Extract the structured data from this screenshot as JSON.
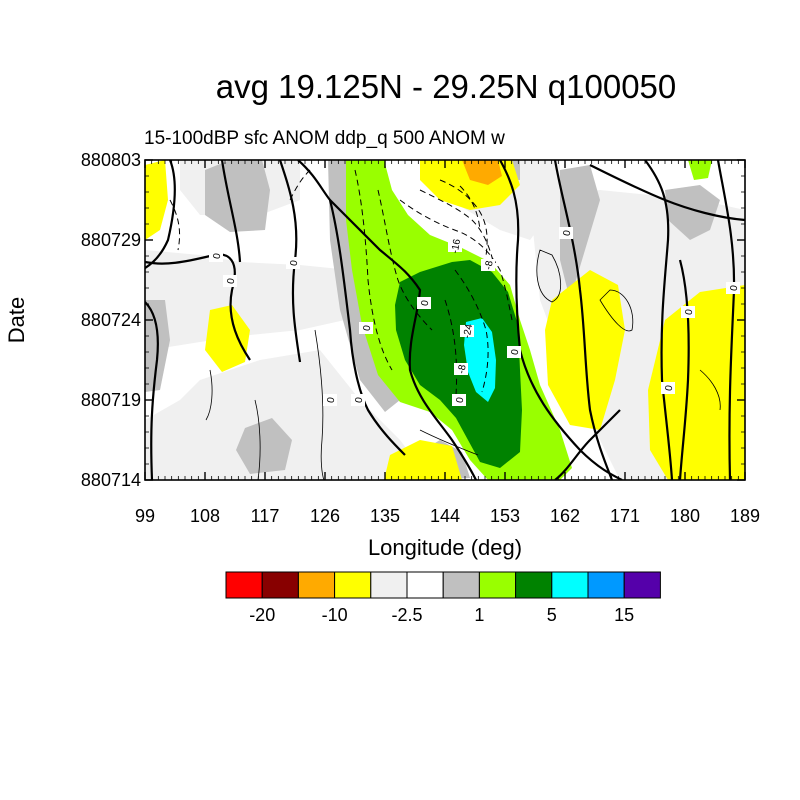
{
  "chart_data": {
    "type": "heatmap",
    "title": "avg 19.125N - 29.25N q100050",
    "subtitle": "15-100dBP sfc ANOM ddp_q 500 ANOM w",
    "xlabel": "Longitude (deg)",
    "ylabel": "Date",
    "xlim": [
      99,
      189
    ],
    "x_ticks": [
      "99",
      "108",
      "117",
      "126",
      "135",
      "144",
      "153",
      "162",
      "171",
      "180",
      "189"
    ],
    "y_ticks": [
      "880714",
      "880719",
      "880724",
      "880729",
      "880803"
    ],
    "ylim": [
      "880714",
      "880803"
    ],
    "fill_colors": [
      "#ff0000",
      "#880000",
      "#ffaa00",
      "#ffff00",
      "#f0f0f0",
      "#ffffff",
      "#c0c0c0",
      "#99ff00",
      "#008200",
      "#00ffff",
      "#0099ff",
      "#5500aa"
    ],
    "colorbar_labels": [
      "-20",
      "-10",
      "-2.5",
      "1",
      "5",
      "15"
    ],
    "contour_labels": [
      "0",
      "0",
      "0",
      "0",
      "0",
      "0",
      "-16",
      "-8",
      "-8",
      "-24",
      "0",
      "0",
      "0",
      "0",
      "0",
      "0",
      "0"
    ],
    "anomaly_regions": [
      {
        "level": "3 to 5",
        "color": "#99ff00",
        "lon": [
          130,
          160
        ],
        "date": [
          "880716",
          "880803"
        ]
      },
      {
        "level": "5 to 15",
        "color": "#008200",
        "lon": [
          139,
          156
        ],
        "date": [
          "880716",
          "880728"
        ]
      },
      {
        "level": "15 to 20",
        "color": "#00ffff",
        "lon": [
          147,
          153
        ],
        "date": [
          "880720",
          "880723"
        ]
      },
      {
        "level": "-5 to -2.5",
        "color": "#ffff00",
        "lon": [
          157,
          171
        ],
        "date": [
          "880716",
          "880726"
        ]
      },
      {
        "level": "-5 to -2.5",
        "color": "#ffff00",
        "lon": [
          174,
          189
        ],
        "date": [
          "880714",
          "880724"
        ]
      },
      {
        "level": "-5 to -2.5",
        "color": "#ffff00",
        "lon": [
          110,
          115
        ],
        "date": [
          "880721",
          "880724"
        ]
      },
      {
        "level": "-5 to -2.5",
        "color": "#ffff00",
        "lon": [
          99,
          102
        ],
        "date": [
          "880729",
          "880803"
        ]
      },
      {
        "level": "-5 to -2.5",
        "color": "#ffff00",
        "lon": [
          140,
          159
        ],
        "date": [
          "880800",
          "880803"
        ]
      },
      {
        "level": "-10 to -5",
        "color": "#ffaa00",
        "lon": [
          146,
          151
        ],
        "date": [
          "880801",
          "880803"
        ]
      },
      {
        "level": "-5 to -2.5",
        "color": "#ffff00",
        "lon": [
          138,
          148
        ],
        "date": [
          "880714",
          "880716"
        ]
      },
      {
        "level": "1 to 3",
        "color": "#c0c0c0",
        "lon": [
          99,
          103
        ],
        "date": [
          "880714",
          "880725"
        ]
      },
      {
        "level": "1 to 3",
        "color": "#c0c0c0",
        "lon": [
          117,
          126
        ],
        "date": [
          "880729",
          "880803"
        ]
      },
      {
        "level": "1 to 3",
        "color": "#c0c0c0",
        "lon": [
          116,
          122
        ],
        "date": [
          "880714",
          "880717"
        ]
      },
      {
        "level": "1 to 3",
        "color": "#c0c0c0",
        "lon": [
          163,
          168
        ],
        "date": [
          "880725",
          "880803"
        ]
      },
      {
        "level": "1 to 3",
        "color": "#c0c0c0",
        "lon": [
          174,
          180
        ],
        "date": [
          "880729",
          "880802"
        ]
      },
      {
        "level": "1 to 3",
        "color": "#c0c0c0",
        "lon": [
          129,
          134
        ],
        "date": [
          "880727",
          "880803"
        ]
      }
    ]
  }
}
